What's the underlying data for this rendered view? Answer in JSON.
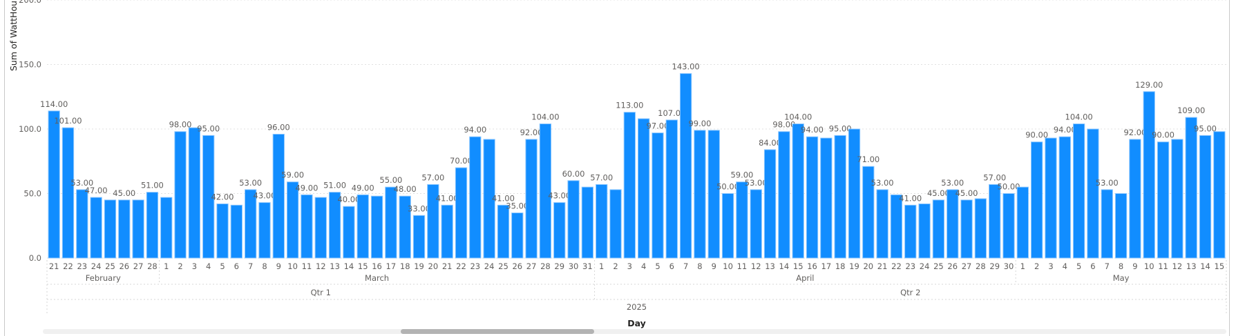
{
  "chart_data": {
    "type": "bar",
    "ylabel": "Sum of WattHou",
    "xlabel": "Day",
    "ylim": [
      0,
      200
    ],
    "yticks": [
      "0.0",
      "50.0",
      "100.0",
      "150.0",
      "200.0"
    ],
    "ytick_values": [
      0,
      50,
      100,
      150,
      200
    ],
    "grid": true,
    "bar_color": "#118DFF",
    "bar_outline_color": "#8CC7FF",
    "year": "2025",
    "quarters": [
      {
        "label": "Qtr 1",
        "months": [
          "February",
          "March"
        ]
      },
      {
        "label": "Qtr 2",
        "months": [
          "April",
          "May"
        ]
      }
    ],
    "months": [
      {
        "label": "February",
        "days": [
          "21",
          "22",
          "23",
          "24",
          "25",
          "26",
          "27",
          "28"
        ],
        "values": [
          114,
          101,
          53,
          47,
          45,
          45,
          45,
          51
        ],
        "data_labels": [
          "114.00",
          "101.00",
          "53.00",
          "47.00",
          null,
          "45.00",
          null,
          "51.00"
        ]
      },
      {
        "label": "March",
        "days": [
          "1",
          "2",
          "3",
          "4",
          "5",
          "6",
          "7",
          "8",
          "9",
          "10",
          "11",
          "12",
          "13",
          "14",
          "15",
          "16",
          "17",
          "18",
          "19",
          "20",
          "21",
          "22",
          "23",
          "24",
          "25",
          "26",
          "27",
          "28",
          "29",
          "30",
          "31"
        ],
        "values": [
          47,
          98,
          101,
          95,
          42,
          41,
          53,
          43,
          96,
          59,
          49,
          47,
          51,
          40,
          49,
          48,
          55,
          48,
          33,
          57,
          41,
          70,
          94,
          92,
          41,
          35,
          92,
          104,
          43,
          60,
          55
        ],
        "data_labels": [
          null,
          "98.00",
          null,
          "95.00",
          "42.00",
          null,
          "53.00",
          "43.00",
          "96.00",
          "59.00",
          "49.00",
          null,
          "51.00",
          "40.00",
          "49.00",
          null,
          "55.00",
          "48.00",
          "33.00",
          "57.00",
          "41.00",
          "70.00",
          "94.00",
          null,
          "41.00",
          "35.00",
          "92.00",
          "104.00",
          "43.00",
          "60.00",
          null
        ]
      },
      {
        "label": "April",
        "days": [
          "1",
          "2",
          "3",
          "4",
          "5",
          "6",
          "7",
          "8",
          "9",
          "10",
          "11",
          "12",
          "13",
          "14",
          "15",
          "16",
          "17",
          "18",
          "19",
          "20",
          "21",
          "22",
          "23",
          "24",
          "25",
          "26",
          "27",
          "28",
          "29",
          "30"
        ],
        "values": [
          57,
          53,
          113,
          108,
          97,
          107,
          143,
          99,
          99,
          50,
          59,
          53,
          84,
          98,
          104,
          94,
          93,
          95,
          100,
          71,
          53,
          49,
          41,
          42,
          45,
          53,
          45,
          46,
          57,
          50
        ],
        "data_labels": [
          "57.00",
          null,
          "113.00",
          null,
          "97.00",
          "107.00",
          "143.00",
          "99.00",
          null,
          "50.00",
          "59.00",
          "53.00",
          "84.00",
          "98.00",
          "104.00",
          "94.00",
          null,
          "95.00",
          null,
          "71.00",
          "53.00",
          null,
          "41.00",
          null,
          "45.00",
          "53.00",
          "45.00",
          null,
          "57.00",
          "50.00"
        ]
      },
      {
        "label": "May",
        "days": [
          "1",
          "2",
          "3",
          "4",
          "5",
          "6",
          "7",
          "8",
          "9",
          "10",
          "11",
          "12",
          "13",
          "14",
          "15"
        ],
        "values": [
          55,
          90,
          93,
          94,
          104,
          100,
          53,
          50,
          92,
          129,
          90,
          92,
          109,
          95,
          98
        ],
        "data_labels": [
          null,
          "90.00",
          null,
          "94.00",
          "104.00",
          null,
          "53.00",
          null,
          "92.00",
          "129.00",
          "90.00",
          null,
          "109.00",
          "95.00",
          null
        ]
      }
    ]
  }
}
